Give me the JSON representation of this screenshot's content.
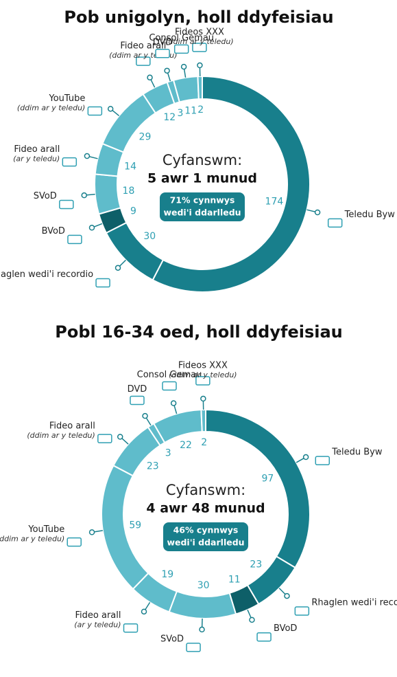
{
  "chart_data": [
    {
      "type": "pie",
      "title": "Pob unigolyn, holl ddyfeisiau",
      "center_label": "Cyfanswm:",
      "total": "5 awr 1 munud",
      "broadcast_note": [
        "71% cynnwys",
        "wedi'i ddarlledu"
      ],
      "categories": [
        "Teledu Byw",
        "Rhaglen wedi'i recordio",
        "BVoD",
        "SVoD",
        "Fideo arall",
        "YouTube",
        "Fideo arall",
        "DVD",
        "Consol Gemau",
        "Fideos XXX"
      ],
      "category_notes": [
        null,
        null,
        null,
        null,
        "(ar y teledu)",
        "(ddim ar y teledu)",
        "(ddim ar y teledu)",
        null,
        null,
        "(ddim ar y teledu)"
      ],
      "values": [
        174,
        30,
        9,
        18,
        14,
        29,
        12,
        3,
        11,
        2
      ],
      "colors": [
        "#187f8c",
        "#187f8c",
        "#0e5f68",
        "#5fbccb",
        "#5fbccb",
        "#5fbccb",
        "#5fbccb",
        "#5fbccb",
        "#5fbccb",
        "#5fbccb"
      ]
    },
    {
      "type": "pie",
      "title": "Pobl 16-34 oed, holl ddyfeisiau",
      "center_label": "Cyfanswm:",
      "total": "4 awr 48 munud",
      "broadcast_note": [
        "46% cynnwys",
        "wedi'i ddarlledu"
      ],
      "categories": [
        "Teledu Byw",
        "Rhaglen wedi'i recordio",
        "BVoD",
        "SVoD",
        "Fideo arall",
        "YouTube",
        "Fideo arall",
        "DVD",
        "Consol Gemau",
        "Fideos XXX"
      ],
      "category_notes": [
        null,
        null,
        null,
        null,
        "(ar y teledu)",
        "(ddim ar y teledu)",
        "(ddim ar y teledu)",
        null,
        null,
        "(ddim ar y teledu)"
      ],
      "values": [
        97,
        23,
        11,
        30,
        19,
        59,
        23,
        3,
        22,
        2
      ],
      "colors": [
        "#187f8c",
        "#187f8c",
        "#0e5f68",
        "#5fbccb",
        "#5fbccb",
        "#5fbccb",
        "#5fbccb",
        "#5fbccb",
        "#5fbccb",
        "#5fbccb"
      ]
    }
  ]
}
